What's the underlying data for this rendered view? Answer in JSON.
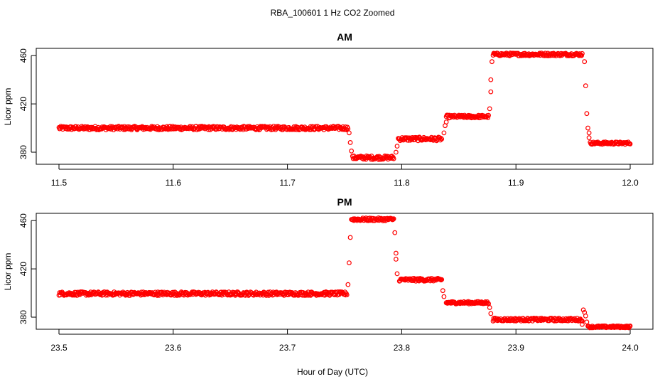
{
  "figure": {
    "title": "RBA_100601  1 Hz CO2 Zoomed",
    "xlabel": "Hour of Day (UTC)"
  },
  "colors": {
    "points": "#ff0000",
    "axis": "#000000",
    "background": "#ffffff"
  },
  "chart_data": [
    {
      "type": "scatter",
      "title": "AM",
      "xlabel": "",
      "ylabel": "Licor ppm",
      "xlim": [
        11.5,
        12.0
      ],
      "ylim": [
        370,
        466
      ],
      "xticks": [
        "11.5",
        "11.6",
        "11.7",
        "11.8",
        "11.9",
        "12.0"
      ],
      "yticks": [
        "380",
        "420",
        "460"
      ],
      "segments": [
        {
          "x0": 11.5,
          "x1": 11.753,
          "y": 400,
          "noise": 1.5
        },
        {
          "x0": 11.757,
          "x1": 11.793,
          "y": 375.5,
          "noise": 1.5
        },
        {
          "x0": 11.797,
          "x1": 11.835,
          "y": 391,
          "noise": 1.5
        },
        {
          "x0": 11.839,
          "x1": 11.876,
          "y": 409.5,
          "noise": 1.2
        },
        {
          "x0": 11.88,
          "x1": 11.958,
          "y": 461,
          "noise": 1.2
        },
        {
          "x0": 11.965,
          "x1": 12.0,
          "y": 387.5,
          "noise": 1.0
        }
      ],
      "transitions": [
        {
          "x": 11.754,
          "y": 396
        },
        {
          "x": 11.755,
          "y": 388
        },
        {
          "x": 11.756,
          "y": 381
        },
        {
          "x": 11.795,
          "y": 380
        },
        {
          "x": 11.796,
          "y": 385
        },
        {
          "x": 11.837,
          "y": 396
        },
        {
          "x": 11.838,
          "y": 402
        },
        {
          "x": 11.839,
          "y": 405
        },
        {
          "x": 11.877,
          "y": 416
        },
        {
          "x": 11.878,
          "y": 430
        },
        {
          "x": 11.878,
          "y": 440
        },
        {
          "x": 11.879,
          "y": 455
        },
        {
          "x": 11.96,
          "y": 455
        },
        {
          "x": 11.961,
          "y": 435
        },
        {
          "x": 11.962,
          "y": 412
        },
        {
          "x": 11.963,
          "y": 400
        },
        {
          "x": 11.964,
          "y": 396
        },
        {
          "x": 11.964,
          "y": 392
        }
      ]
    },
    {
      "type": "scatter",
      "title": "PM",
      "xlabel": "",
      "ylabel": "Licor ppm",
      "xlim": [
        23.5,
        24.0
      ],
      "ylim": [
        370,
        466
      ],
      "xticks": [
        "23.5",
        "23.6",
        "23.7",
        "23.8",
        "23.9",
        "24.0"
      ],
      "yticks": [
        "380",
        "420",
        "460"
      ],
      "segments": [
        {
          "x0": 23.5,
          "x1": 23.752,
          "y": 399.5,
          "noise": 1.5
        },
        {
          "x0": 23.756,
          "x1": 23.793,
          "y": 461,
          "noise": 1.2
        },
        {
          "x0": 23.798,
          "x1": 23.835,
          "y": 411,
          "noise": 1.2
        },
        {
          "x0": 23.839,
          "x1": 23.876,
          "y": 392,
          "noise": 1.0
        },
        {
          "x0": 23.88,
          "x1": 23.958,
          "y": 378,
          "noise": 1.2
        },
        {
          "x0": 23.963,
          "x1": 24.0,
          "y": 372,
          "noise": 0.8
        }
      ],
      "transitions": [
        {
          "x": 23.753,
          "y": 407
        },
        {
          "x": 23.754,
          "y": 425
        },
        {
          "x": 23.755,
          "y": 446
        },
        {
          "x": 23.794,
          "y": 450
        },
        {
          "x": 23.795,
          "y": 433
        },
        {
          "x": 23.795,
          "y": 428
        },
        {
          "x": 23.796,
          "y": 416
        },
        {
          "x": 23.836,
          "y": 402
        },
        {
          "x": 23.837,
          "y": 397
        },
        {
          "x": 23.877,
          "y": 388
        },
        {
          "x": 23.878,
          "y": 383
        },
        {
          "x": 23.958,
          "y": 374
        },
        {
          "x": 23.959,
          "y": 386
        },
        {
          "x": 23.96,
          "y": 384
        },
        {
          "x": 23.961,
          "y": 381
        },
        {
          "x": 23.962,
          "y": 376
        }
      ]
    }
  ]
}
